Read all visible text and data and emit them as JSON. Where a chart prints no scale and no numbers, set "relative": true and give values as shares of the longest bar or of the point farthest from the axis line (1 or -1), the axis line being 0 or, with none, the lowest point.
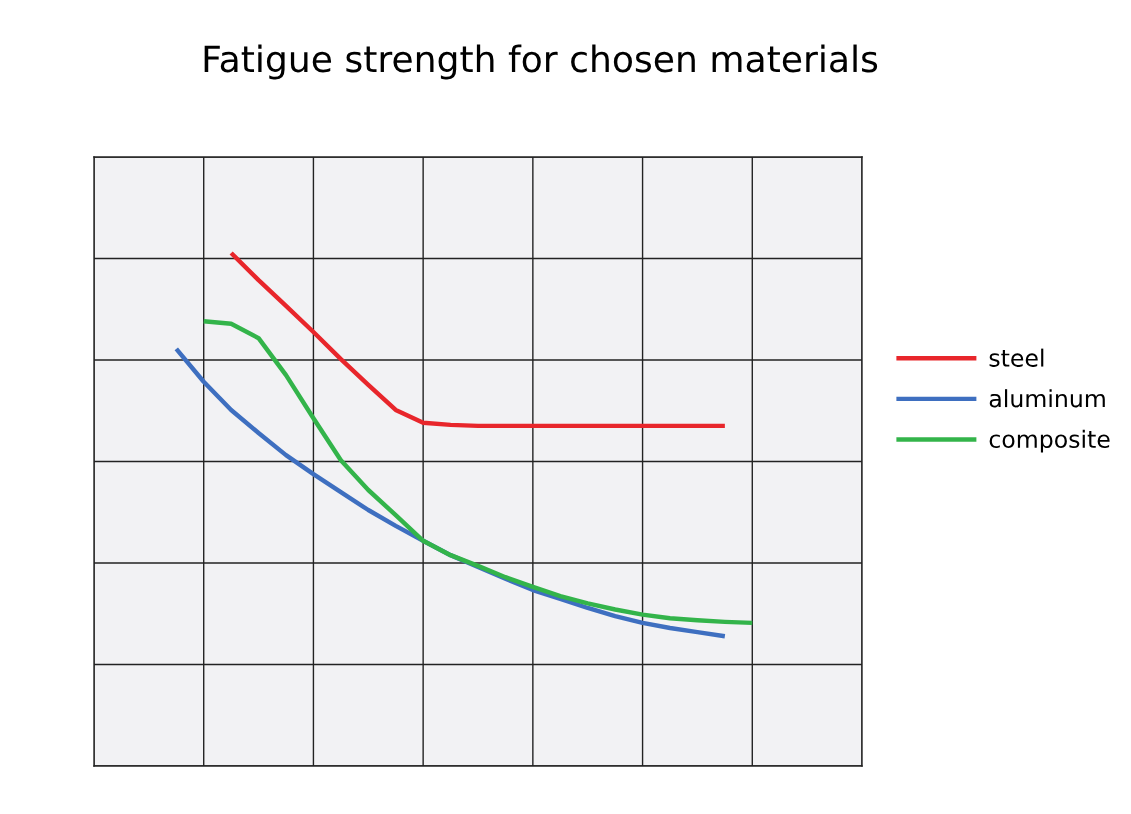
{
  "chart_data": {
    "type": "line",
    "title": "Fatigue strength for chosen materials",
    "relative": true,
    "grid": true,
    "legend": "right",
    "marker": "none",
    "line_style": "solid",
    "categories": [
      null,
      null,
      null,
      null,
      null,
      null,
      null,
      null,
      null,
      null,
      null,
      null,
      null,
      null,
      null,
      null,
      null,
      null,
      null,
      null,
      null,
      null,
      null,
      null,
      null,
      null,
      null,
      null,
      null
    ],
    "series": [
      {
        "name": "steel",
        "color": "#e8262b",
        "values": [
          null,
          null,
          null,
          null,
          null,
          1,
          0.947,
          0.897,
          0.846,
          0.793,
          0.743,
          0.694,
          0.669,
          0.665,
          0.663,
          0.663,
          0.663,
          0.663,
          0.663,
          0.663,
          0.663,
          0.663,
          0.663,
          0.663,
          null,
          null,
          null,
          null,
          null
        ]
      },
      {
        "name": "aluminum",
        "color": "#3e6fc0",
        "values": [
          null,
          null,
          null,
          0.813,
          0.749,
          0.694,
          0.649,
          0.606,
          0.569,
          0.534,
          0.499,
          0.468,
          0.439,
          0.411,
          0.388,
          0.365,
          0.343,
          0.326,
          0.308,
          0.292,
          0.279,
          0.269,
          0.261,
          0.253,
          null,
          null,
          null,
          null,
          null
        ]
      },
      {
        "name": "composite",
        "color": "#33b44a",
        "values": [
          null,
          null,
          null,
          null,
          0.867,
          0.862,
          0.834,
          0.762,
          0.678,
          0.596,
          0.538,
          0.489,
          0.439,
          0.411,
          0.39,
          0.368,
          0.349,
          0.331,
          0.317,
          0.305,
          0.295,
          0.288,
          0.284,
          0.281,
          0.279,
          null,
          null,
          null,
          null
        ]
      }
    ]
  }
}
